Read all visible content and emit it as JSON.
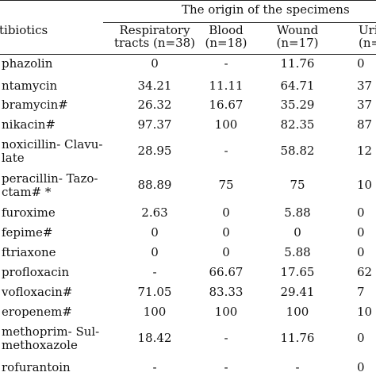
{
  "header": {
    "group_title": "The origin of the specimens",
    "antibiotics_label": "tibiotics",
    "col1": {
      "line1": "Respiratory",
      "line2": "tracts (n=38)"
    },
    "col2": {
      "line1": "Blood",
      "line2": "(n=18)"
    },
    "col3": {
      "line1": "Wound",
      "line2": "(n=17)"
    },
    "col4": {
      "line1": "Uri",
      "line2": "(n="
    }
  },
  "rows": [
    {
      "label": [
        "phazolin"
      ],
      "resp": "0",
      "blood": "-",
      "wound": "11.76",
      "uri": "0"
    },
    {
      "label": [
        "ntamycin"
      ],
      "resp": "34.21",
      "blood": "11.11",
      "wound": "64.71",
      "uri": "37"
    },
    {
      "label": [
        "bramycin#"
      ],
      "resp": "26.32",
      "blood": "16.67",
      "wound": "35.29",
      "uri": "37"
    },
    {
      "label": [
        "nikacin#"
      ],
      "resp": "97.37",
      "blood": "100",
      "wound": "82.35",
      "uri": "87"
    },
    {
      "label": [
        "noxicillin- Clavu-",
        "late"
      ],
      "resp": "28.95",
      "blood": "-",
      "wound": "58.82",
      "uri": "12"
    },
    {
      "label": [
        "peracillin- Tazo-",
        "ctam# *"
      ],
      "resp": "88.89",
      "blood": "75",
      "wound": "75",
      "uri": "10"
    },
    {
      "label": [
        "furoxime"
      ],
      "resp": "2.63",
      "blood": "0",
      "wound": "5.88",
      "uri": "0"
    },
    {
      "label": [
        "fepime#"
      ],
      "resp": "0",
      "blood": "0",
      "wound": "0",
      "uri": "0"
    },
    {
      "label": [
        "ftriaxone"
      ],
      "resp": "0",
      "blood": "0",
      "wound": "5.88",
      "uri": "0"
    },
    {
      "label": [
        "profloxacin"
      ],
      "resp": "-",
      "blood": "66.67",
      "wound": "17.65",
      "uri": "62"
    },
    {
      "label": [
        "vofloxacin#"
      ],
      "resp": "71.05",
      "blood": "83.33",
      "wound": "29.41",
      "uri": "7"
    },
    {
      "label": [
        "eropenem#"
      ],
      "resp": "100",
      "blood": "100",
      "wound": "100",
      "uri": "10"
    },
    {
      "label": [
        "methoprim- Sul-",
        "methoxazole"
      ],
      "resp": "18.42",
      "blood": "-",
      "wound": "11.76",
      "uri": "0"
    },
    {
      "label": [
        "rofurantoin"
      ],
      "resp": "-",
      "blood": "-",
      "wound": "-",
      "uri": "0"
    }
  ]
}
